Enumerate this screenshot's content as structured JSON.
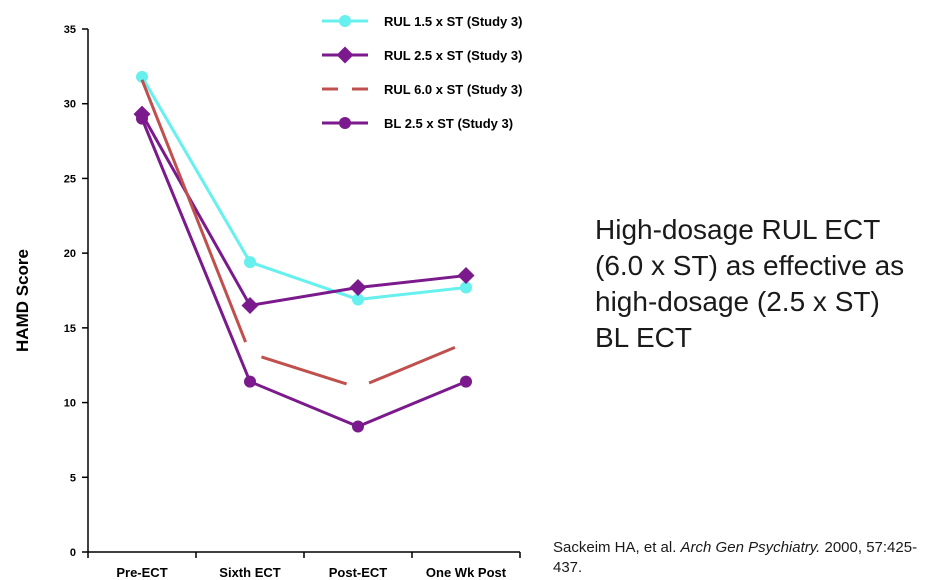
{
  "chart_data": {
    "type": "line",
    "ylabel": "HAMD Score",
    "xlabel": "",
    "categories": [
      "Pre-ECT",
      "Sixth ECT",
      "Post-ECT",
      "One Wk Post"
    ],
    "ylim": [
      0,
      35
    ],
    "yticks": [
      0,
      5,
      10,
      15,
      20,
      25,
      30,
      35
    ],
    "grid": false,
    "legend_position": "top",
    "series": [
      {
        "name": "RUL 1.5 x ST (Study 3)",
        "values": [
          31.8,
          19.4,
          16.9,
          17.7
        ],
        "color": "#66f0ee",
        "marker": "circle",
        "dash": false
      },
      {
        "name": "RUL 2.5 x ST (Study 3)",
        "values": [
          29.3,
          16.5,
          17.7,
          18.5
        ],
        "color": "#7b1a8c",
        "marker": "diamond",
        "dash": false
      },
      {
        "name": "RUL 6.0 x ST (Study 3)",
        "values": [
          31.6,
          13.3,
          11.0,
          14.0
        ],
        "color": "#c0504d",
        "marker": "none",
        "dash": true
      },
      {
        "name": "BL 2.5 x ST (Study 3)",
        "values": [
          29.0,
          11.4,
          8.4,
          11.4
        ],
        "color": "#7b1a8c",
        "marker": "circle",
        "dash": false
      }
    ]
  },
  "side_text": "High-dosage RUL ECT (6.0 x ST) as effective as high-dosage (2.5 x ST) BL ECT",
  "citation": {
    "authors": "Sackeim HA, et al. ",
    "journal": "Arch Gen Psychiatry.",
    "details": " 2000, 57:425-437."
  }
}
